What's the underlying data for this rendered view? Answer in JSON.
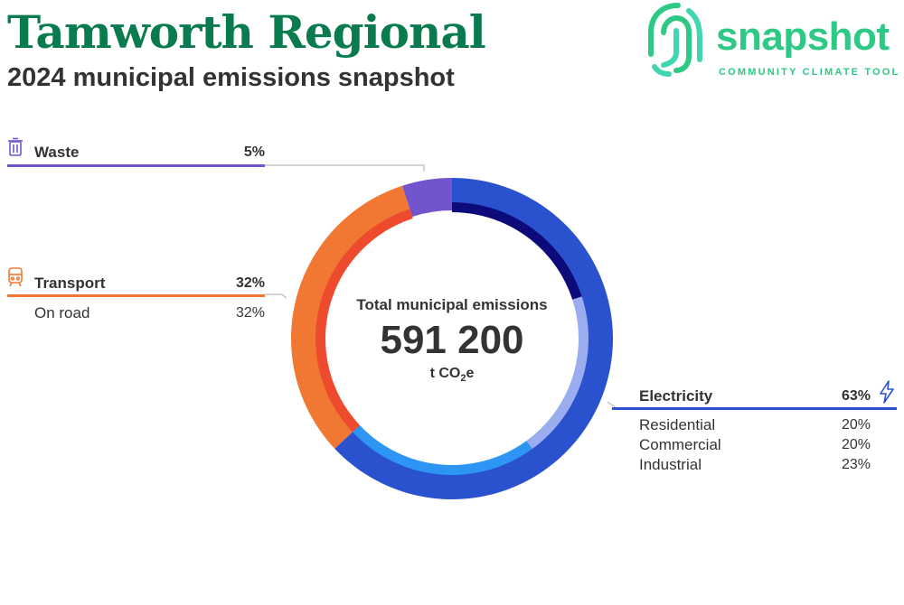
{
  "header": {
    "title": "Tamworth Regional",
    "subtitle": "2024 municipal emissions snapshot"
  },
  "logo": {
    "word": "snapshot",
    "tagline": "COMMUNITY CLIMATE TOOL",
    "color": "#2ec985"
  },
  "center": {
    "label": "Total municipal emissions",
    "value": "591 200",
    "unit_prefix": "t CO",
    "unit_sub": "2",
    "unit_suffix": "e"
  },
  "chart_data": {
    "type": "pie",
    "style": "donut",
    "total": 591200,
    "unit": "t CO2e",
    "sectors": [
      {
        "name": "Electricity",
        "percent": 63,
        "color": "#2a52cf",
        "icon": "lightning-icon",
        "subsectors": [
          {
            "name": "Residential",
            "percent": 20,
            "color": "#0d0a7a"
          },
          {
            "name": "Commercial",
            "percent": 20,
            "color": "#9aaeef"
          },
          {
            "name": "Industrial",
            "percent": 23,
            "color": "#2d96f5"
          }
        ]
      },
      {
        "name": "Transport",
        "percent": 32,
        "color": "#f07832",
        "icon": "train-icon",
        "subsectors": [
          {
            "name": "On road",
            "percent": 32,
            "color": "#ee4a2d"
          }
        ]
      },
      {
        "name": "Waste",
        "percent": 5,
        "color": "#7254cc",
        "icon": "trash-icon",
        "subsectors": []
      }
    ]
  }
}
